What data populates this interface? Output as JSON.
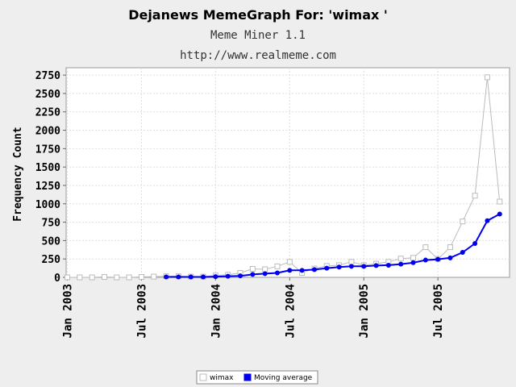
{
  "chart_data": {
    "type": "line",
    "title": "Dejanews MemeGraph For: 'wimax '",
    "subtitle": "Meme Miner 1.1",
    "subtitle2": "http://www.realmeme.com",
    "xlabel": "",
    "ylabel": "Frequency Count",
    "ylim": [
      0,
      2850
    ],
    "yticks": [
      0,
      250,
      500,
      750,
      1000,
      1250,
      1500,
      1750,
      2000,
      2250,
      2500,
      2750
    ],
    "xticks": [
      {
        "label": "Jan 2003",
        "x": 0
      },
      {
        "label": "Jul 2003",
        "x": 6
      },
      {
        "label": "Jan 2004",
        "x": 12
      },
      {
        "label": "Jul 2004",
        "x": 18
      },
      {
        "label": "Jan 2005",
        "x": 24
      },
      {
        "label": "Jul 2005",
        "x": 30
      }
    ],
    "xlim": [
      -0.1,
      35.8
    ],
    "grid": true,
    "legend_position": "bottom-center",
    "series": [
      {
        "name": "wimax",
        "color": "#bbbbbb",
        "marker": "square-open",
        "points": [
          [
            0,
            0
          ],
          [
            1,
            0
          ],
          [
            2,
            0
          ],
          [
            3,
            5
          ],
          [
            4,
            0
          ],
          [
            5,
            0
          ],
          [
            6,
            5
          ],
          [
            7,
            10
          ],
          [
            8,
            15
          ],
          [
            9,
            15
          ],
          [
            10,
            10
          ],
          [
            11,
            10
          ],
          [
            12,
            25
          ],
          [
            13,
            35
          ],
          [
            14,
            60
          ],
          [
            15,
            115
          ],
          [
            16,
            110
          ],
          [
            17,
            150
          ],
          [
            18,
            210
          ],
          [
            19,
            60
          ],
          [
            20,
            120
          ],
          [
            21,
            155
          ],
          [
            22,
            165
          ],
          [
            23,
            210
          ],
          [
            24,
            165
          ],
          [
            25,
            185
          ],
          [
            26,
            210
          ],
          [
            27,
            255
          ],
          [
            28,
            265
          ],
          [
            29,
            410
          ],
          [
            30,
            250
          ],
          [
            31,
            410
          ],
          [
            32,
            760
          ],
          [
            33,
            1110
          ],
          [
            34,
            2720
          ],
          [
            35,
            1030
          ]
        ]
      },
      {
        "name": "Moving average",
        "color": "#0000ee",
        "marker": "circle",
        "points": [
          [
            8,
            5
          ],
          [
            9,
            5
          ],
          [
            10,
            5
          ],
          [
            11,
            5
          ],
          [
            12,
            10
          ],
          [
            13,
            15
          ],
          [
            14,
            20
          ],
          [
            15,
            40
          ],
          [
            16,
            50
          ],
          [
            17,
            60
          ],
          [
            18,
            95
          ],
          [
            19,
            95
          ],
          [
            20,
            105
          ],
          [
            21,
            125
          ],
          [
            22,
            140
          ],
          [
            23,
            150
          ],
          [
            24,
            150
          ],
          [
            25,
            160
          ],
          [
            26,
            165
          ],
          [
            27,
            180
          ],
          [
            28,
            200
          ],
          [
            29,
            235
          ],
          [
            30,
            245
          ],
          [
            31,
            265
          ],
          [
            32,
            340
          ],
          [
            33,
            460
          ],
          [
            34,
            770
          ],
          [
            35,
            860
          ]
        ]
      }
    ]
  }
}
